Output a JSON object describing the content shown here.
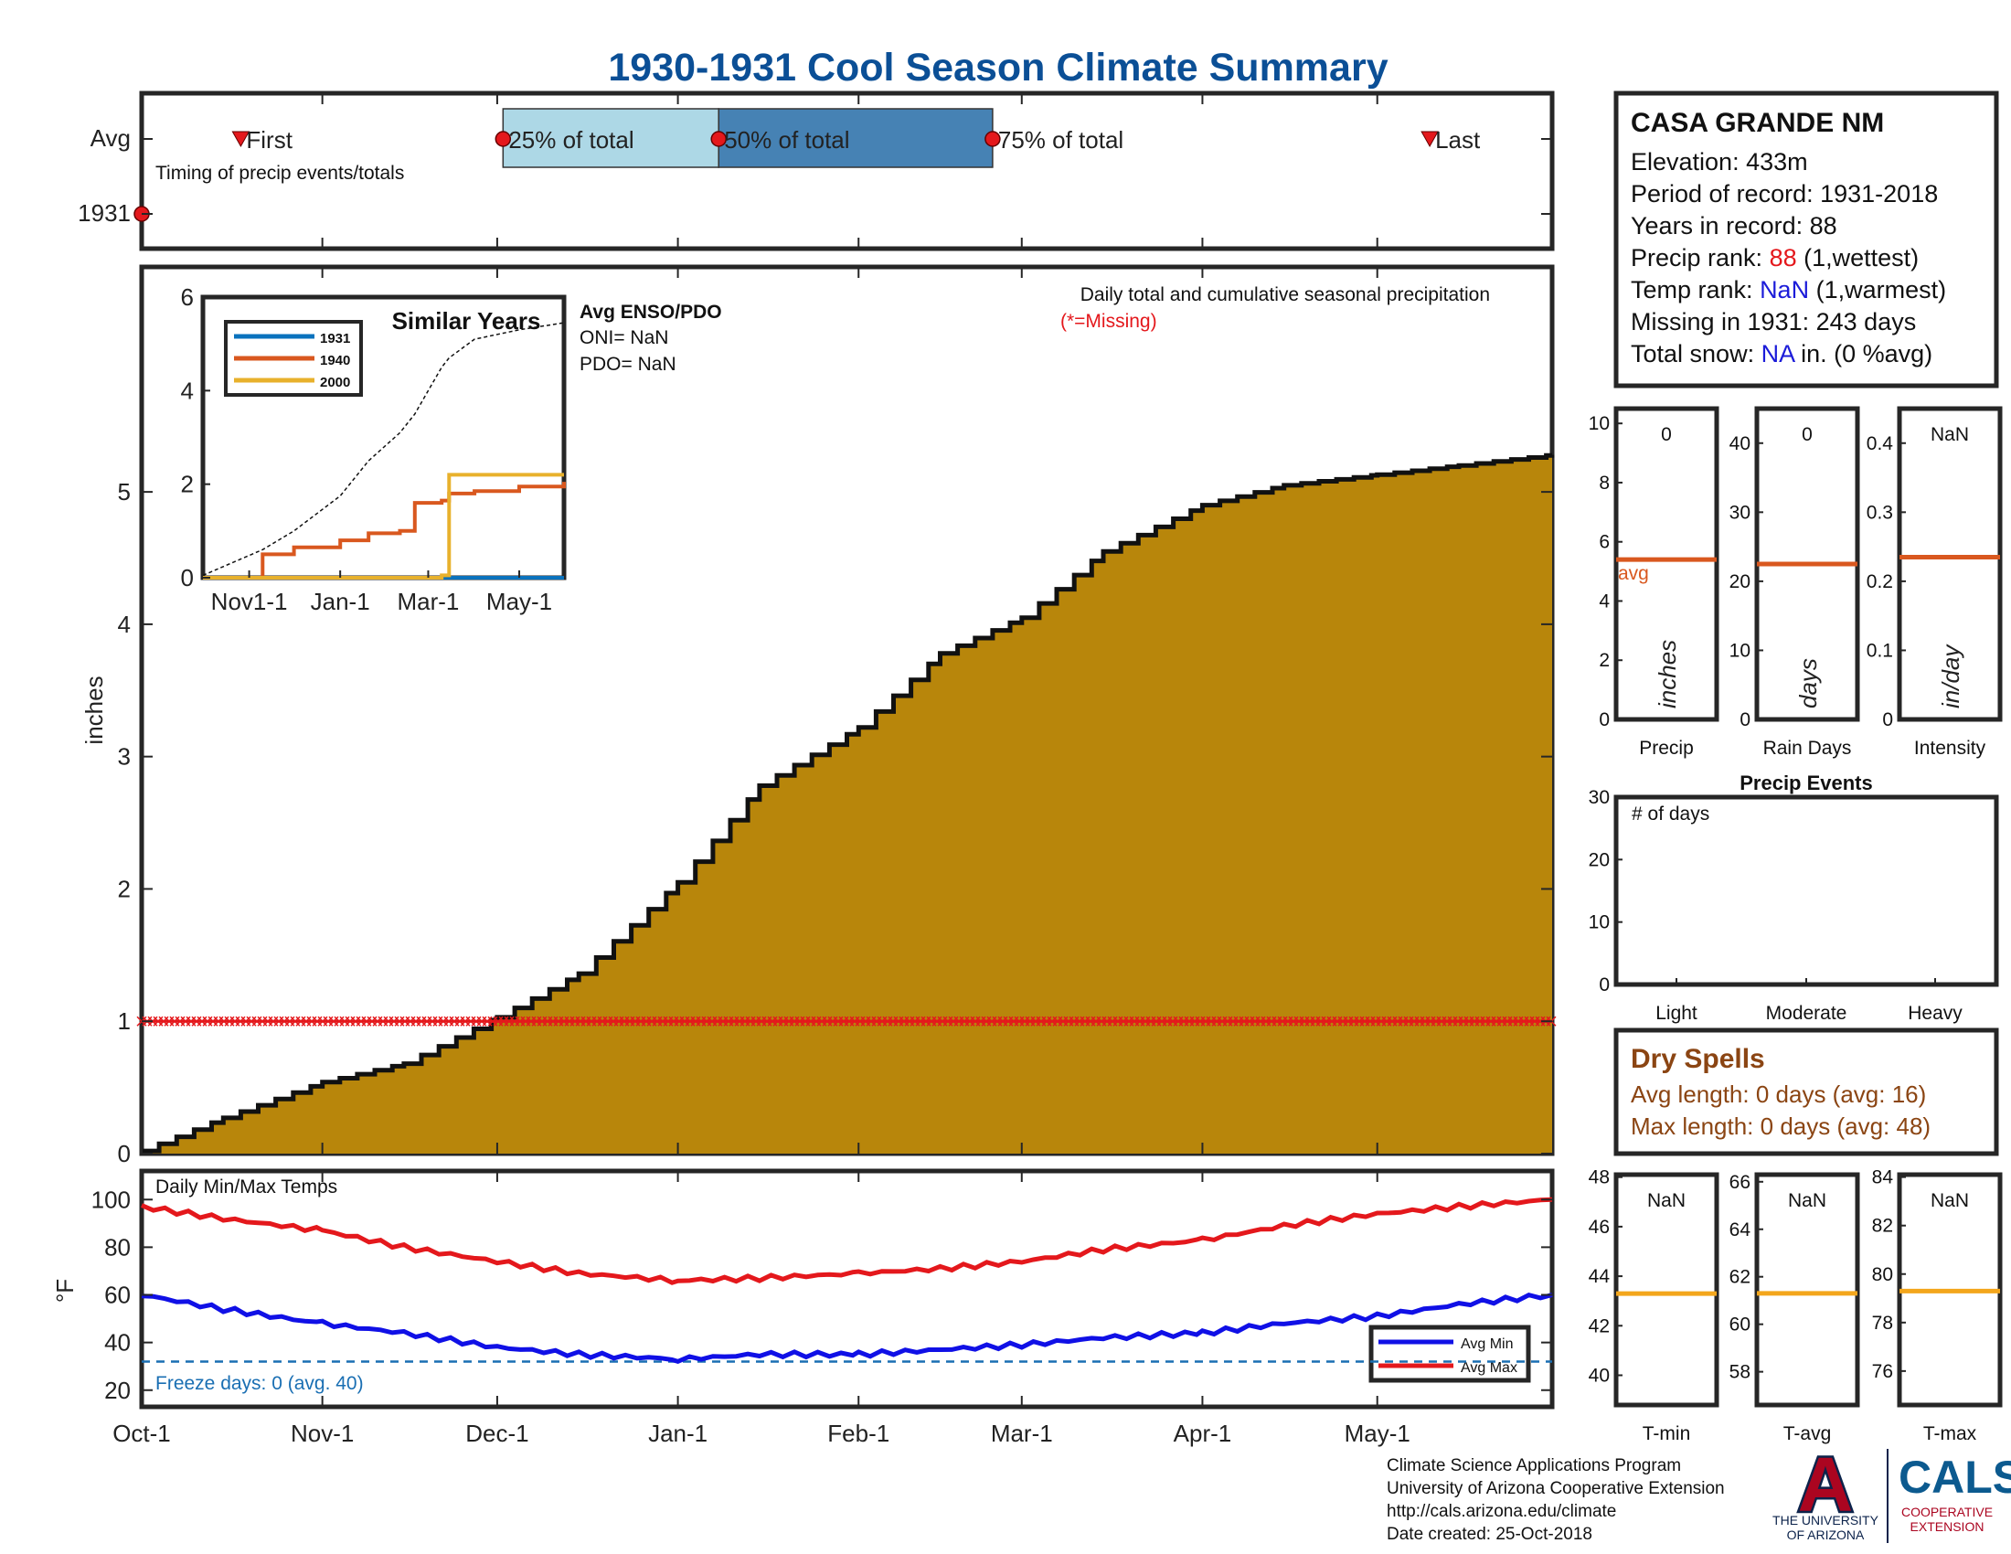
{
  "title": "1930-1931 Cool Season Climate Summary",
  "colors": {
    "title": "#0b4f96",
    "precip_fill": "#b8860b",
    "red": "#e4181c",
    "blue": "#1010e6",
    "orange": "#d9581f",
    "yellow": "#e8b12c",
    "avg_line": "#d9581f",
    "t_avg_line": "#f3a61c",
    "light_blue": "#add8e6",
    "steel_blue": "#4682b4",
    "dry_spell": "#8b4513"
  },
  "timing_panel": {
    "y_ticks": [
      "Avg",
      "1931"
    ],
    "label": "Timing of precip events/totals",
    "markers": [
      "First",
      "25% of total",
      "50% of total",
      "75% of total",
      "Last"
    ],
    "marker_dates": [
      "1930-10-18",
      "1930-12-02",
      "1931-01-08",
      "1931-02-24",
      "1931-05-10"
    ],
    "year_marker_date": "1930-10-01"
  },
  "chart_data": [
    {
      "type": "area",
      "name": "Daily total and cumulative seasonal precipitation",
      "annotation": "Daily total and cumulative seasonal precipitation",
      "missing_note": "(*=Missing)",
      "ylabel": "inches",
      "ylim": [
        0,
        6.7
      ],
      "y_ticks": [
        0,
        1,
        2,
        3,
        4,
        5
      ],
      "x_ticks": [
        "Oct-1",
        "Nov-1",
        "Dec-1",
        "Jan-1",
        "Feb-1",
        "Mar-1",
        "Apr-1",
        "May-1"
      ],
      "xlim": [
        "1930-10-01",
        "1931-05-31"
      ],
      "cumulative": {
        "x": [
          "1930-10-01",
          "1930-10-15",
          "1930-11-01",
          "1930-11-15",
          "1930-12-01",
          "1930-12-15",
          "1931-01-01",
          "1931-01-15",
          "1931-02-01",
          "1931-02-15",
          "1931-03-01",
          "1931-03-15",
          "1931-04-01",
          "1931-04-15",
          "1931-05-01",
          "1931-05-15",
          "1931-05-31"
        ],
        "y": [
          0.02,
          0.27,
          0.54,
          0.68,
          1.03,
          1.36,
          2.05,
          2.78,
          3.22,
          3.78,
          4.05,
          4.55,
          4.9,
          5.05,
          5.13,
          5.2,
          5.28
        ]
      },
      "missing_marker_value": 1.0
    },
    {
      "type": "line",
      "name": "Similar Years",
      "title": "Similar Years",
      "ylim": [
        0,
        6
      ],
      "y_ticks": [
        0,
        2,
        4,
        6
      ],
      "x_ticks": [
        "Nov1-1",
        "Jan-1",
        "Mar-1",
        "May-1"
      ],
      "legend": [
        "1931",
        "1940",
        "2000"
      ],
      "x": [
        "1930-10-01",
        "1930-11-10",
        "1930-12-01",
        "1931-01-01",
        "1931-01-20",
        "1931-02-10",
        "1931-02-20",
        "1931-03-01",
        "1931-03-10",
        "1931-03-15",
        "1931-04-01",
        "1931-05-01",
        "1931-05-31"
      ],
      "series": [
        {
          "name": "1931",
          "values": [
            0,
            0,
            0,
            0,
            0,
            0,
            0,
            0,
            0,
            0,
            0,
            0,
            0
          ]
        },
        {
          "name": "1940",
          "values": [
            0,
            0.5,
            0.65,
            0.8,
            0.95,
            1.0,
            1.6,
            1.6,
            1.65,
            1.8,
            1.85,
            1.95,
            2.05
          ]
        },
        {
          "name": "2000",
          "values": [
            0,
            0,
            0,
            0,
            0,
            0,
            0,
            0,
            0.05,
            2.2,
            2.2,
            2.2,
            2.2
          ]
        }
      ],
      "avg_dashed": [
        0.05,
        0.6,
        1.0,
        1.75,
        2.5,
        3.1,
        3.5,
        4.0,
        4.5,
        4.7,
        5.1,
        5.3,
        5.45
      ]
    },
    {
      "type": "line",
      "name": "Daily Min/Max Temps",
      "title": "Daily Min/Max Temps",
      "ylabel": "°F",
      "ylim": [
        13,
        112
      ],
      "y_ticks": [
        20,
        40,
        60,
        80,
        100
      ],
      "freeze_line": 32,
      "x": [
        "1930-10-01",
        "1930-10-15",
        "1930-11-01",
        "1930-11-15",
        "1930-12-01",
        "1930-12-15",
        "1931-01-01",
        "1931-01-15",
        "1931-02-01",
        "1931-02-15",
        "1931-03-01",
        "1931-03-15",
        "1931-04-01",
        "1931-04-15",
        "1931-05-01",
        "1931-05-15",
        "1931-05-31"
      ],
      "series": [
        {
          "name": "Avg Min",
          "values": [
            60,
            54,
            48,
            44,
            38,
            35,
            33,
            35,
            35,
            37,
            39,
            42,
            44,
            48,
            51,
            56,
            60
          ]
        },
        {
          "name": "Avg Max",
          "values": [
            97,
            92,
            87,
            80,
            74,
            69,
            66,
            67,
            69,
            71,
            74,
            79,
            83,
            89,
            94,
            97,
            100
          ]
        }
      ],
      "legend": [
        "Avg Min",
        "Avg Max"
      ]
    }
  ],
  "inset_text": {
    "enso_title": "Avg ENSO/PDO",
    "oni": "ONI= NaN",
    "pdo": "PDO= NaN"
  },
  "freeze_text": "Freeze days: 0 (avg. 40)",
  "info_box": {
    "station": "CASA GRANDE NM",
    "elevation": "Elevation: 433m",
    "period": "Period of record: 1931-2018",
    "years": "Years in record: 88",
    "precip_rank_label": "Precip rank: ",
    "precip_rank_value": "88",
    "precip_rank_suffix": " (1,wettest)",
    "temp_rank_label": "Temp rank: ",
    "temp_rank_value": "NaN",
    "temp_rank_suffix": " (1,warmest)",
    "missing": "Missing in 1931: 243 days",
    "snow_label": "Total snow: ",
    "snow_value": "NA",
    "snow_suffix": " in. (0 %avg)"
  },
  "precip_bars": {
    "panels": [
      {
        "label": "Precip",
        "unit": "inches",
        "value_text": "0",
        "ylim": [
          0,
          10.5
        ],
        "ticks": [
          0,
          2,
          4,
          6,
          8,
          10
        ],
        "avg": 5.4,
        "avg_label": "avg"
      },
      {
        "label": "Rain Days",
        "unit": "days",
        "value_text": "0",
        "ylim": [
          0,
          45
        ],
        "ticks": [
          0,
          10,
          20,
          30,
          40
        ],
        "avg": 22.5
      },
      {
        "label": "Intensity",
        "unit": "in/day",
        "value_text": "NaN",
        "ylim": [
          0,
          0.45
        ],
        "ticks": [
          0,
          0.1,
          0.2,
          0.3,
          0.4
        ],
        "avg": 0.235
      }
    ]
  },
  "precip_events": {
    "title": "Precip Events",
    "ylabel": "# of days",
    "ylim": [
      0,
      30
    ],
    "ticks": [
      0,
      10,
      20,
      30
    ],
    "categories": [
      "Light",
      "Moderate",
      "Heavy"
    ],
    "values": [
      0,
      0,
      0
    ]
  },
  "dry_spells": {
    "title": "Dry Spells",
    "avg_length": "Avg length: 0 days (avg: 16)",
    "max_length": "Max length: 0 days (avg: 48)"
  },
  "temp_bars": {
    "panels": [
      {
        "label": "T-min",
        "value_text": "NaN",
        "ylim": [
          38.8,
          48.1
        ],
        "ticks": [
          40,
          42,
          44,
          46,
          48
        ],
        "avg": 43.3
      },
      {
        "label": "T-avg",
        "value_text": "NaN",
        "ylim": [
          56.6,
          66.3
        ],
        "ticks": [
          58,
          60,
          62,
          64,
          66
        ],
        "avg": 61.3
      },
      {
        "label": "T-max",
        "value_text": "NaN",
        "ylim": [
          74.6,
          84.1
        ],
        "ticks": [
          76,
          78,
          80,
          82,
          84
        ],
        "avg": 79.3
      }
    ]
  },
  "footer": {
    "line1": "Climate Science Applications Program",
    "line2": "University of Arizona Cooperative Extension",
    "line3": "http://cals.arizona.edu/climate",
    "line4": " Date created: 25-Oct-2018",
    "ua_line1": "THE UNIVERSITY",
    "ua_line2": "OF ARIZONA",
    "cals": "CALS",
    "cals_line1": "COOPERATIVE",
    "cals_line2": "EXTENSION",
    "ua_logo_letter": "A"
  }
}
